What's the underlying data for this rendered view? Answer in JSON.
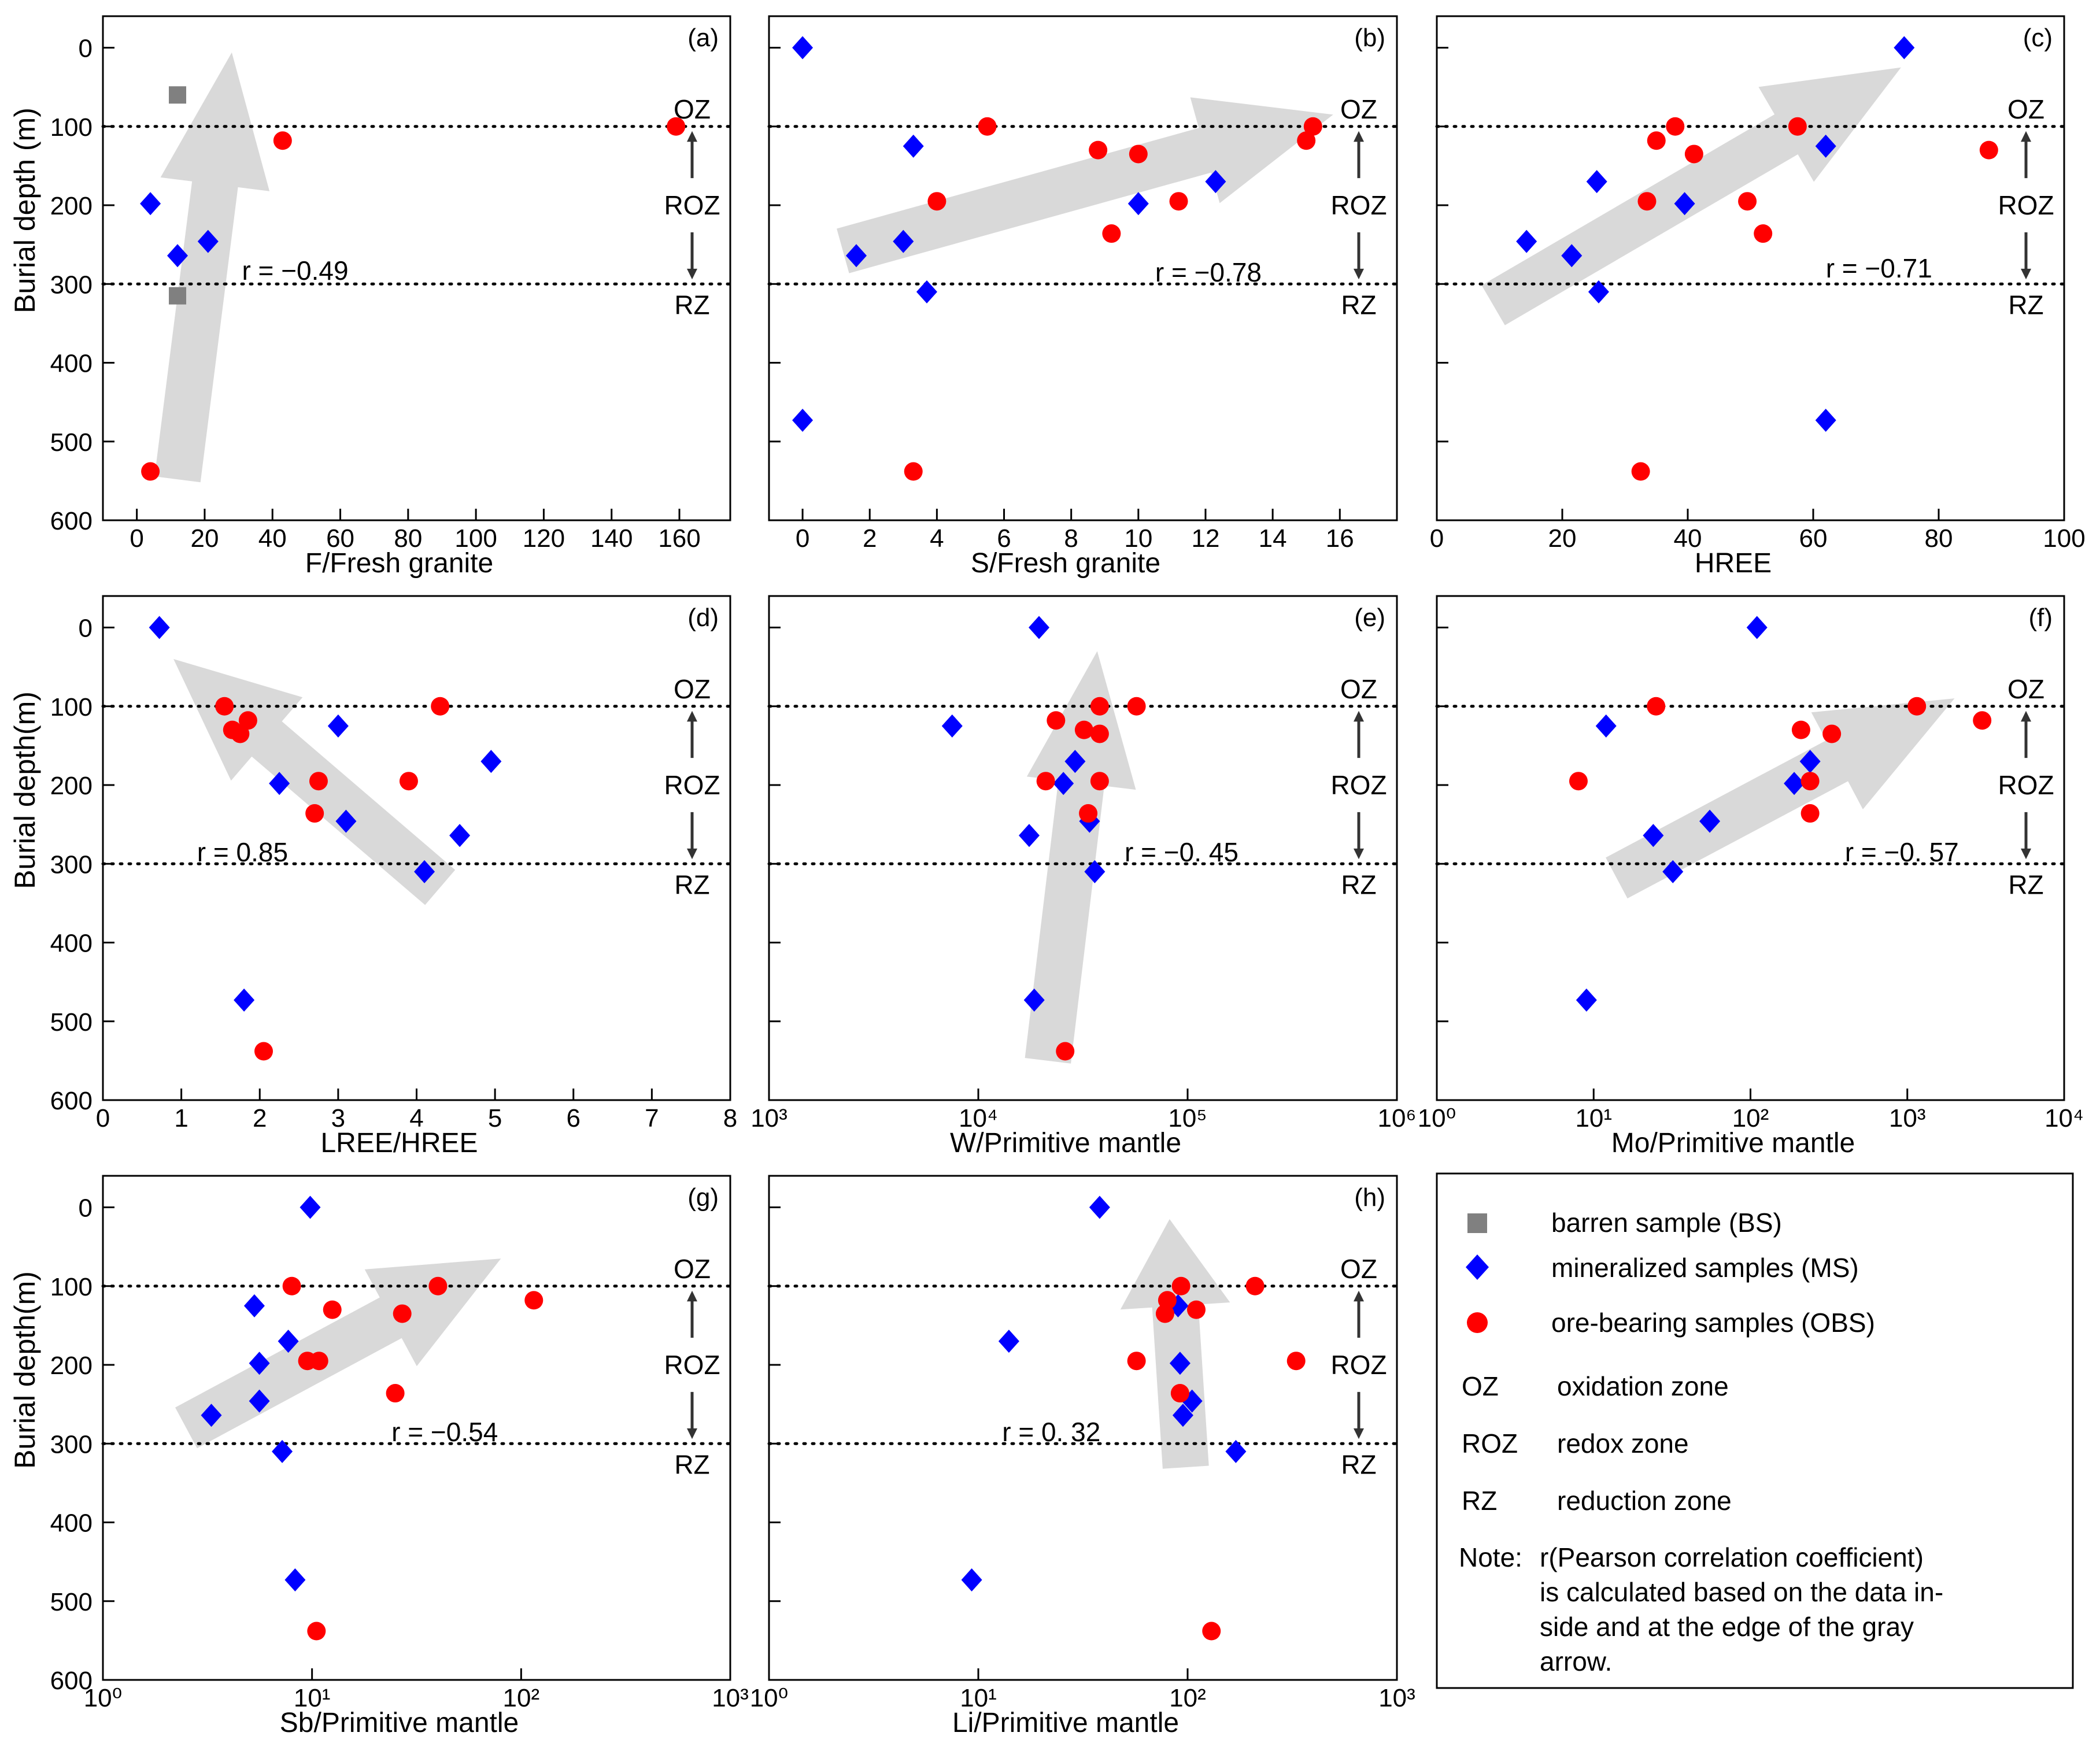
{
  "figure": {
    "legend": {
      "items": [
        {
          "marker": "square",
          "color": "#808080",
          "label": "barren sample (BS)"
        },
        {
          "marker": "diamond",
          "color": "#0000ff",
          "label": "mineralized samples (MS)"
        },
        {
          "marker": "circle",
          "color": "#ff0000",
          "label": "ore-bearing samples (OBS)"
        }
      ],
      "zones": [
        {
          "abbr": "OZ",
          "desc": "oxidation zone"
        },
        {
          "abbr": "ROZ",
          "desc": "redox zone"
        },
        {
          "abbr": "RZ",
          "desc": "reduction zone"
        }
      ],
      "note_label": "Note:",
      "note_lines": [
        "r(Pearson correlation coefficient)",
        "is calculated based on the data in-",
        "side and at the edge of the gray",
        "arrow."
      ]
    },
    "zone_labels": {
      "oz": "OZ",
      "roz": "ROZ",
      "rz": "RZ"
    },
    "colors": {
      "barren": "#808080",
      "mineralized": "#0000ff",
      "ore": "#ff0000",
      "arrow": "#d9d9d9"
    }
  },
  "chart_data": [
    {
      "type": "scatter",
      "panel": "(a)",
      "xscale": "linear",
      "xlabel": "F/Fresh granite",
      "ylabel": "Burial depth (m)",
      "xlim": [
        -10,
        175
      ],
      "ylim": [
        600,
        -40
      ],
      "xticks": [
        0,
        20,
        40,
        60,
        80,
        100,
        120,
        140,
        160
      ],
      "xticklabels": [
        "0",
        "20",
        "40",
        "60",
        "80",
        "100",
        "120",
        "140",
        "160"
      ],
      "yticks": [
        0,
        100,
        200,
        300,
        400,
        500,
        600
      ],
      "yticklabels": [
        "0",
        "100",
        "200",
        "300",
        "400",
        "500",
        "600"
      ],
      "r_label": "r = −0.49",
      "r_pos": [
        31,
        283
      ],
      "zone_lines": [
        100,
        300
      ],
      "arrow": [
        [
          12,
          548
        ],
        [
          28,
          6
        ]
      ],
      "series": [
        {
          "name": "barren sample (BS)",
          "marker": "square",
          "points": [
            [
              12,
              60
            ],
            [
              12,
              315
            ]
          ]
        },
        {
          "name": "mineralized samples (MS)",
          "marker": "diamond",
          "points": [
            [
              4,
              198
            ],
            [
              12,
              264
            ],
            [
              21,
              246
            ]
          ]
        },
        {
          "name": "ore-bearing samples (OBS)",
          "marker": "circle",
          "points": [
            [
              43,
              118
            ],
            [
              159,
              100
            ],
            [
              4,
              538
            ]
          ]
        }
      ]
    },
    {
      "type": "scatter",
      "panel": "(b)",
      "xscale": "linear",
      "xlabel": "S/Fresh granite",
      "ylabel": "",
      "xlim": [
        -1,
        17.7
      ],
      "ylim": [
        600,
        -40
      ],
      "xticks": [
        0,
        2,
        4,
        6,
        8,
        10,
        12,
        14,
        16
      ],
      "xticklabels": [
        "0",
        "2",
        "4",
        "6",
        "8",
        "10",
        "12",
        "14",
        "16"
      ],
      "yticks": [
        0,
        100,
        200,
        300,
        400,
        500,
        600
      ],
      "yticklabels": [],
      "r_label": "r = −0.78",
      "r_pos": [
        10.5,
        285
      ],
      "zone_lines": [
        100,
        300
      ],
      "arrow": [
        [
          1.2,
          258
        ],
        [
          15.8,
          85
        ]
      ],
      "series": [
        {
          "name": "mineralized samples (MS)",
          "marker": "diamond",
          "points": [
            [
              0,
              0
            ],
            [
              3.3,
              125
            ],
            [
              12.3,
              170
            ],
            [
              10,
              198
            ],
            [
              3,
              246
            ],
            [
              1.6,
              264
            ],
            [
              3.7,
              310
            ],
            [
              0,
              473
            ]
          ]
        },
        {
          "name": "ore-bearing samples (OBS)",
          "marker": "circle",
          "points": [
            [
              5.5,
              100
            ],
            [
              15.2,
              100
            ],
            [
              15,
              118
            ],
            [
              8.8,
              130
            ],
            [
              10,
              135
            ],
            [
              4,
              195
            ],
            [
              11.2,
              195
            ],
            [
              9.2,
              236
            ],
            [
              3.3,
              538
            ]
          ]
        }
      ]
    },
    {
      "type": "scatter",
      "panel": "(c)",
      "xscale": "linear",
      "xlabel": "HREE",
      "ylabel": "",
      "xlim": [
        0,
        100
      ],
      "ylim": [
        600,
        -40
      ],
      "xticks": [
        0,
        20,
        40,
        60,
        80,
        100
      ],
      "xticklabels": [
        "0",
        "20",
        "40",
        "60",
        "80",
        "100"
      ],
      "yticks": [
        0,
        100,
        200,
        300,
        400,
        500,
        600
      ],
      "yticklabels": [],
      "r_label": "r = −0.71",
      "r_pos": [
        62,
        280
      ],
      "zone_lines": [
        100,
        300
      ],
      "arrow": [
        [
          9,
          327
        ],
        [
          74,
          25
        ]
      ],
      "series": [
        {
          "name": "mineralized samples (MS)",
          "marker": "diamond",
          "points": [
            [
              74.5,
              0
            ],
            [
              62,
              125
            ],
            [
              25.5,
              170
            ],
            [
              39.5,
              198
            ],
            [
              14.3,
              246
            ],
            [
              21.5,
              264
            ],
            [
              25.8,
              310
            ],
            [
              62,
              473
            ]
          ]
        },
        {
          "name": "ore-bearing samples (OBS)",
          "marker": "circle",
          "points": [
            [
              38,
              100
            ],
            [
              57.5,
              100
            ],
            [
              35,
              118
            ],
            [
              88,
              130
            ],
            [
              41,
              135
            ],
            [
              33.5,
              195
            ],
            [
              49.5,
              195
            ],
            [
              52,
              236
            ],
            [
              32.5,
              538
            ]
          ]
        }
      ]
    },
    {
      "type": "scatter",
      "panel": "(d)",
      "xscale": "linear",
      "xlabel": "LREE/HREE",
      "ylabel": "Burial depth(m)",
      "xlim": [
        0,
        8
      ],
      "ylim": [
        600,
        -40
      ],
      "xticks": [
        0,
        1,
        2,
        3,
        4,
        5,
        6,
        7,
        8
      ],
      "xticklabels": [
        "0",
        "1",
        "2",
        "3",
        "4",
        "5",
        "6",
        "7",
        "8"
      ],
      "yticks": [
        0,
        100,
        200,
        300,
        400,
        500,
        600
      ],
      "yticklabels": [
        "0",
        "100",
        "200",
        "300",
        "400",
        "500",
        "600"
      ],
      "r_label": "r = 0.85",
      "r_pos": [
        1.2,
        285
      ],
      "zone_lines": [
        100,
        300
      ],
      "arrow": [
        [
          4.3,
          330
        ],
        [
          0.9,
          40
        ]
      ],
      "series": [
        {
          "name": "mineralized samples (MS)",
          "marker": "diamond",
          "points": [
            [
              0.72,
              0
            ],
            [
              3.0,
              125
            ],
            [
              4.95,
              170
            ],
            [
              2.25,
              198
            ],
            [
              3.1,
              246
            ],
            [
              4.55,
              264
            ],
            [
              4.1,
              310
            ],
            [
              1.8,
              473
            ]
          ]
        },
        {
          "name": "ore-bearing samples (OBS)",
          "marker": "circle",
          "points": [
            [
              1.55,
              100
            ],
            [
              4.3,
              100
            ],
            [
              1.85,
              118
            ],
            [
              1.65,
              130
            ],
            [
              1.75,
              135
            ],
            [
              2.75,
              195
            ],
            [
              3.9,
              195
            ],
            [
              2.7,
              236
            ],
            [
              2.05,
              538
            ]
          ]
        }
      ]
    },
    {
      "type": "scatter",
      "panel": "(e)",
      "xscale": "log",
      "xlabel": "W/Primitive  mantle",
      "ylabel": "",
      "xlim": [
        1000,
        1000000
      ],
      "ylim": [
        600,
        -40
      ],
      "xticks": [
        1000,
        10000,
        100000,
        1000000
      ],
      "xticklabels": [
        "10³",
        "10⁴",
        "10⁵",
        "10⁶"
      ],
      "yticks": [
        0,
        100,
        200,
        300,
        400,
        500,
        600
      ],
      "yticklabels": [],
      "r_label": "r = −0. 45",
      "r_pos": [
        50000,
        285
      ],
      "zone_lines": [
        100,
        300
      ],
      "arrow": [
        [
          21500,
          550
        ],
        [
          37000,
          30
        ]
      ],
      "series": [
        {
          "name": "mineralized samples (MS)",
          "marker": "diamond",
          "points": [
            [
              19500,
              0
            ],
            [
              7500,
              125
            ],
            [
              29000,
              170
            ],
            [
              25500,
              198
            ],
            [
              34000,
              246
            ],
            [
              17500,
              264
            ],
            [
              36000,
              310
            ],
            [
              18500,
              473
            ]
          ]
        },
        {
          "name": "ore-bearing samples (OBS)",
          "marker": "circle",
          "points": [
            [
              38000,
              100
            ],
            [
              57000,
              100
            ],
            [
              23500,
              118
            ],
            [
              32000,
              130
            ],
            [
              38000,
              135
            ],
            [
              21000,
              195
            ],
            [
              38000,
              195
            ],
            [
              33500,
              236
            ],
            [
              26000,
              538
            ]
          ]
        }
      ]
    },
    {
      "type": "scatter",
      "panel": "(f)",
      "xscale": "log",
      "xlabel": "Mo/Primitive  mantle",
      "ylabel": "",
      "xlim": [
        1,
        10000
      ],
      "ylim": [
        600,
        -40
      ],
      "xticks": [
        1,
        10,
        100,
        1000,
        10000
      ],
      "xticklabels": [
        "10⁰",
        "10¹",
        "10²",
        "10³",
        "10⁴"
      ],
      "yticks": [
        0,
        100,
        200,
        300,
        400,
        500,
        600
      ],
      "yticklabels": [],
      "r_label": "r = −0. 57",
      "r_pos": [
        400,
        285
      ],
      "zone_lines": [
        100,
        300
      ],
      "arrow": [
        [
          14,
          318
        ],
        [
          2000,
          90
        ]
      ],
      "series": [
        {
          "name": "mineralized samples (MS)",
          "marker": "diamond",
          "points": [
            [
              110,
              0
            ],
            [
              12,
              125
            ],
            [
              240,
              170
            ],
            [
              190,
              198
            ],
            [
              55,
              246
            ],
            [
              24,
              264
            ],
            [
              32,
              310
            ],
            [
              9,
              473
            ]
          ]
        },
        {
          "name": "ore-bearing samples (OBS)",
          "marker": "circle",
          "points": [
            [
              25,
              100
            ],
            [
              1150,
              100
            ],
            [
              3000,
              118
            ],
            [
              210,
              130
            ],
            [
              330,
              135
            ],
            [
              8,
              195
            ],
            [
              240,
              195
            ],
            [
              240,
              236
            ]
          ]
        }
      ]
    },
    {
      "type": "scatter",
      "panel": "(g)",
      "xscale": "log",
      "xlabel": "Sb/Primitive  mantle",
      "ylabel": "Burial depth(m)",
      "xlim": [
        1,
        1000
      ],
      "ylim": [
        600,
        -40
      ],
      "xticks": [
        1,
        10,
        100,
        1000
      ],
      "xticklabels": [
        "10⁰",
        "10¹",
        "10²",
        "10³"
      ],
      "yticks": [
        0,
        100,
        200,
        300,
        400,
        500,
        600
      ],
      "yticklabels": [
        "0",
        "100",
        "200",
        "300",
        "400",
        "500",
        "600"
      ],
      "r_label": "r = −0.54",
      "r_pos": [
        24,
        285
      ],
      "zone_lines": [
        100,
        300
      ],
      "arrow": [
        [
          2.5,
          280
        ],
        [
          80,
          65
        ]
      ],
      "series": [
        {
          "name": "mineralized samples (MS)",
          "marker": "diamond",
          "points": [
            [
              9.8,
              0
            ],
            [
              5.3,
              125
            ],
            [
              7.7,
              170
            ],
            [
              5.6,
              198
            ],
            [
              5.6,
              246
            ],
            [
              3.3,
              264
            ],
            [
              7.2,
              310
            ],
            [
              8.3,
              473
            ]
          ]
        },
        {
          "name": "ore-bearing samples (OBS)",
          "marker": "circle",
          "points": [
            [
              8,
              100
            ],
            [
              40,
              100
            ],
            [
              115,
              118
            ],
            [
              12.5,
              130
            ],
            [
              27,
              135
            ],
            [
              9.5,
              195
            ],
            [
              10.8,
              195
            ],
            [
              25,
              236
            ],
            [
              10.5,
              538
            ]
          ]
        }
      ]
    },
    {
      "type": "scatter",
      "panel": "(h)",
      "xscale": "log",
      "xlabel": "Li/Primitive  mantle",
      "ylabel": "",
      "xlim": [
        1,
        1000
      ],
      "ylim": [
        600,
        -40
      ],
      "xticks": [
        1,
        10,
        100,
        1000
      ],
      "xticklabels": [
        "10⁰",
        "10¹",
        "10²",
        "10³"
      ],
      "yticks": [
        0,
        100,
        200,
        300,
        400,
        500,
        600
      ],
      "yticklabels": [],
      "r_label": "r = 0. 32",
      "r_pos": [
        13,
        285
      ],
      "zone_lines": [
        100,
        300
      ],
      "arrow": [
        [
          98,
          330
        ],
        [
          82,
          15
        ]
      ],
      "series": [
        {
          "name": "mineralized samples (MS)",
          "marker": "diamond",
          "points": [
            [
              38,
              0
            ],
            [
              90,
              125
            ],
            [
              14,
              170
            ],
            [
              92,
              198
            ],
            [
              105,
              246
            ],
            [
              95,
              264
            ],
            [
              170,
              310
            ],
            [
              9.3,
              473
            ]
          ]
        },
        {
          "name": "ore-bearing samples (OBS)",
          "marker": "circle",
          "points": [
            [
              93,
              100
            ],
            [
              210,
              100
            ],
            [
              80,
              118
            ],
            [
              110,
              130
            ],
            [
              78,
              135
            ],
            [
              57,
              195
            ],
            [
              330,
              195
            ],
            [
              92,
              236
            ],
            [
              130,
              538
            ]
          ]
        }
      ]
    }
  ]
}
